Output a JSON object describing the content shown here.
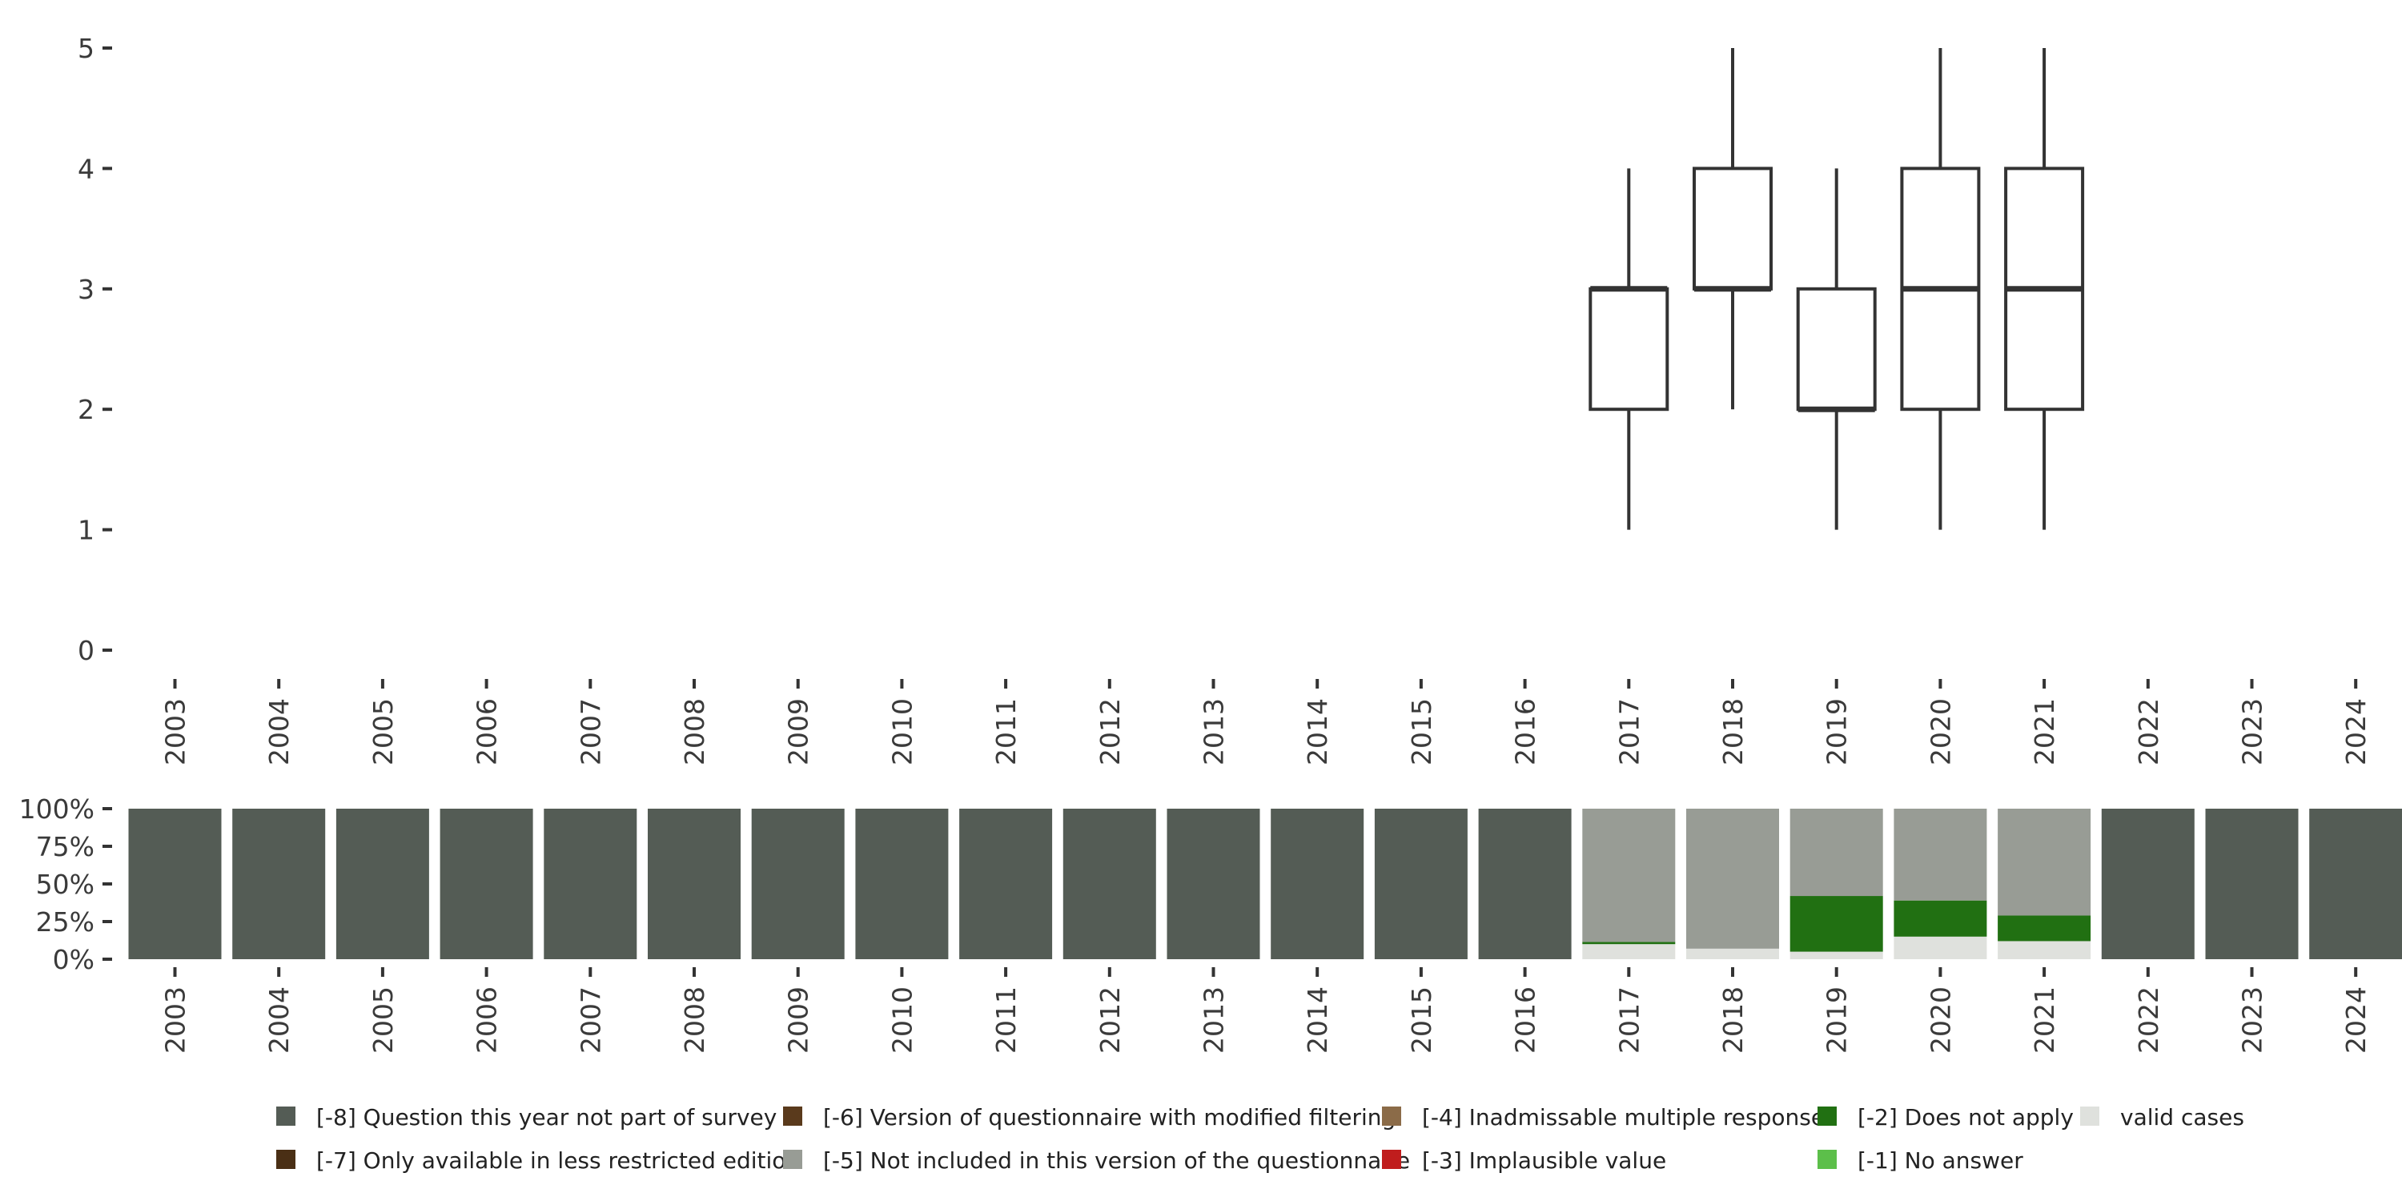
{
  "chart_data": [
    {
      "type": "boxplot",
      "title": "",
      "xlabel": "",
      "ylabel": "",
      "categories": [
        "2003",
        "2004",
        "2005",
        "2006",
        "2007",
        "2008",
        "2009",
        "2010",
        "2011",
        "2012",
        "2013",
        "2014",
        "2015",
        "2016",
        "2017",
        "2018",
        "2019",
        "2020",
        "2021",
        "2022",
        "2023",
        "2024"
      ],
      "ylim": [
        0,
        5
      ],
      "yticks": [
        "0",
        "1",
        "2",
        "3",
        "4",
        "5"
      ],
      "boxes": [
        {
          "year": "2017",
          "min": 1,
          "q1": 2,
          "median": 3,
          "q3": 3,
          "max": 4
        },
        {
          "year": "2018",
          "min": 2,
          "q1": 3,
          "median": 3,
          "q3": 4,
          "max": 5
        },
        {
          "year": "2019",
          "min": 1,
          "q1": 2,
          "median": 2,
          "q3": 3,
          "max": 4
        },
        {
          "year": "2020",
          "min": 1,
          "q1": 2,
          "median": 3,
          "q3": 4,
          "max": 5
        },
        {
          "year": "2021",
          "min": 1,
          "q1": 2,
          "median": 3,
          "q3": 4,
          "max": 5
        }
      ]
    },
    {
      "type": "stacked_bar",
      "title": "",
      "xlabel": "",
      "ylabel": "",
      "categories": [
        "2003",
        "2004",
        "2005",
        "2006",
        "2007",
        "2008",
        "2009",
        "2010",
        "2011",
        "2012",
        "2013",
        "2014",
        "2015",
        "2016",
        "2017",
        "2018",
        "2019",
        "2020",
        "2021",
        "2022",
        "2023",
        "2024"
      ],
      "ylim": [
        0,
        100
      ],
      "yticks": [
        "0%",
        "25%",
        "50%",
        "75%",
        "100%"
      ],
      "series": [
        {
          "name": "valid cases",
          "color": "#dfe1dd",
          "values": [
            0,
            0,
            0,
            0,
            0,
            0,
            0,
            0,
            0,
            0,
            0,
            0,
            0,
            0,
            10,
            7,
            5,
            15,
            12,
            0,
            0,
            0
          ]
        },
        {
          "name": "[-1] No answer",
          "color": "#5cbf4a",
          "values": [
            0,
            0,
            0,
            0,
            0,
            0,
            0,
            0,
            0,
            0,
            0,
            0,
            0,
            0,
            0,
            0,
            0,
            0,
            0,
            0,
            0,
            0
          ]
        },
        {
          "name": "[-2] Does not apply",
          "color": "#217012",
          "values": [
            0,
            0,
            0,
            0,
            0,
            0,
            0,
            0,
            0,
            0,
            0,
            0,
            0,
            0,
            1.5,
            0,
            37,
            24,
            17,
            0,
            0,
            0
          ]
        },
        {
          "name": "[-3] Implausible value",
          "color": "#c01d1d",
          "values": [
            0,
            0,
            0,
            0,
            0,
            0,
            0,
            0,
            0,
            0,
            0,
            0,
            0,
            0,
            0,
            0,
            0,
            0,
            0,
            0,
            0,
            0
          ]
        },
        {
          "name": "[-4] Inadmissable multiple response",
          "color": "#8b6b48",
          "values": [
            0,
            0,
            0,
            0,
            0,
            0,
            0,
            0,
            0,
            0,
            0,
            0,
            0,
            0,
            0,
            0,
            0,
            0,
            0,
            0,
            0,
            0
          ]
        },
        {
          "name": "[-5] Not included in this version of the questionnaire",
          "color": "#989c95",
          "values": [
            0,
            0,
            0,
            0,
            0,
            0,
            0,
            0,
            0,
            0,
            0,
            0,
            0,
            0,
            88.5,
            93,
            58,
            61,
            71,
            0,
            0,
            0
          ]
        },
        {
          "name": "[-6] Version of questionnaire with modified filtering",
          "color": "#5a3a1c",
          "values": [
            0,
            0,
            0,
            0,
            0,
            0,
            0,
            0,
            0,
            0,
            0,
            0,
            0,
            0,
            0,
            0,
            0,
            0,
            0,
            0,
            0,
            0
          ]
        },
        {
          "name": "[-7] Only available in less restricted edition",
          "color": "#4a2f15",
          "values": [
            0,
            0,
            0,
            0,
            0,
            0,
            0,
            0,
            0,
            0,
            0,
            0,
            0,
            0,
            0,
            0,
            0,
            0,
            0,
            0,
            0,
            0
          ]
        },
        {
          "name": "[-8] Question this year not part of survey",
          "color": "#545c55",
          "values": [
            100,
            100,
            100,
            100,
            100,
            100,
            100,
            100,
            100,
            100,
            100,
            100,
            100,
            100,
            0,
            0,
            0,
            0,
            0,
            100,
            100,
            100
          ]
        }
      ],
      "legend": [
        {
          "label": "[-8] Question this year not part of survey",
          "color": "#545c55"
        },
        {
          "label": "[-6] Version of questionnaire with modified filtering",
          "color": "#5a3a1c"
        },
        {
          "label": "[-4] Inadmissable multiple response",
          "color": "#8b6b48"
        },
        {
          "label": "[-2] Does not apply",
          "color": "#217012"
        },
        {
          "label": "valid cases",
          "color": "#dfe1dd"
        },
        {
          "label": "[-7] Only available in less restricted edition",
          "color": "#4a2f15"
        },
        {
          "label": "[-5] Not included in this version of the questionnaire",
          "color": "#989c95"
        },
        {
          "label": "[-3] Implausible value",
          "color": "#c01d1d"
        },
        {
          "label": "[-1] No answer",
          "color": "#5cbf4a"
        }
      ]
    }
  ]
}
